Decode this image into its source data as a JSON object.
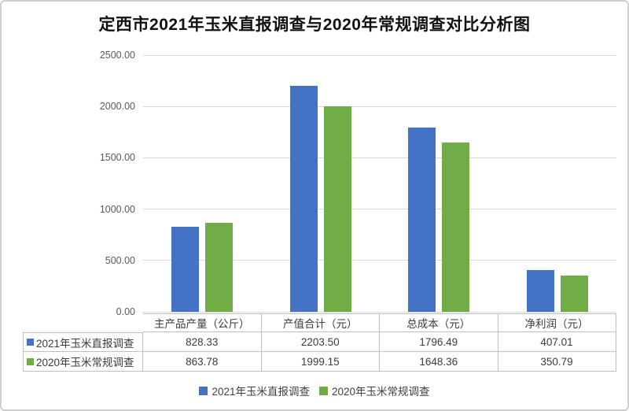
{
  "title": "定西市2021年玉米直报调查与2020年常规调查对比分析图",
  "chart_data": {
    "type": "bar",
    "title": "定西市2021年玉米直报调查与2020年常规调查对比分析图",
    "categories": [
      "主产品产量（公斤）",
      "产值合计（元）",
      "总成本（元）",
      "净利润（元）"
    ],
    "series": [
      {
        "name": "2021年玉米直报调查",
        "color": "#4472C4",
        "values": [
          828.33,
          2203.5,
          1796.49,
          407.01
        ]
      },
      {
        "name": "2020年玉米常规调查",
        "color": "#70AD47",
        "values": [
          863.78,
          1999.15,
          1648.36,
          350.79
        ]
      }
    ],
    "y_axis": {
      "min": 0,
      "max": 2500,
      "tick_interval": 500,
      "tick_labels": [
        "0.00",
        "500.00",
        "1000.00",
        "1500.00",
        "2000.00",
        "2500.00"
      ]
    },
    "grid": true,
    "legend_position": "bottom",
    "has_data_table": true,
    "value_format_decimals": 2,
    "colors": {
      "gridline": "#d9d9d9",
      "table_border": "#bfbfbf",
      "axis_text": "#595959"
    }
  }
}
